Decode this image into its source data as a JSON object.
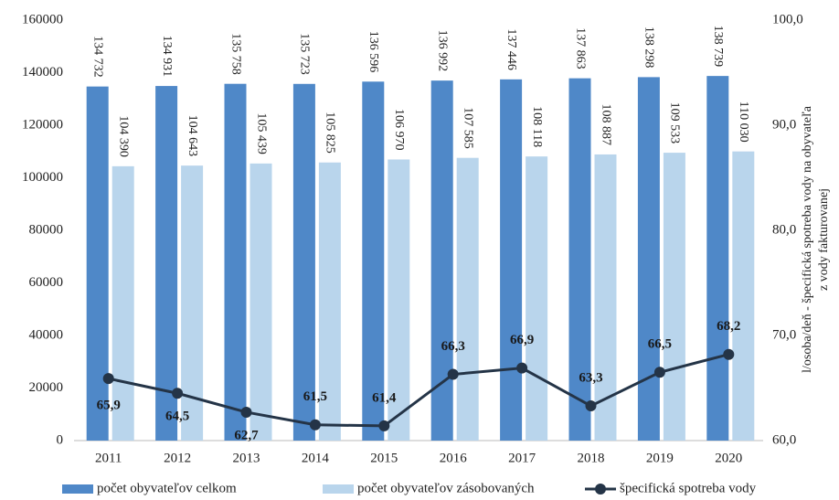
{
  "chart_data": {
    "type": "bar",
    "categories": [
      "2011",
      "2012",
      "2013",
      "2014",
      "2015",
      "2016",
      "2017",
      "2018",
      "2019",
      "2020"
    ],
    "series": [
      {
        "name": "počet obyvateľov celkom",
        "color": "#4f88c8",
        "values": [
          134732,
          134931,
          135758,
          135723,
          136596,
          136992,
          137446,
          137863,
          138298,
          138739
        ],
        "value_labels": [
          "134 732",
          "134 931",
          "135 758",
          "135 723",
          "136 596",
          "136 992",
          "137 446",
          "137 863",
          "138 298",
          "138 739"
        ]
      },
      {
        "name": "počet obyvateľov zásobovaných",
        "color": "#b9d5ec",
        "values": [
          104390,
          104643,
          105439,
          105825,
          106970,
          107585,
          108118,
          108887,
          109533,
          110030
        ],
        "value_labels": [
          "104 390",
          "104 643",
          "105 439",
          "105 825",
          "106 970",
          "107 585",
          "108 118",
          "108 887",
          "109 533",
          "110 030"
        ]
      },
      {
        "name": "špecifická spotreba vody",
        "color": "#243447",
        "type": "line",
        "axis": "y2",
        "values": [
          65.9,
          64.5,
          62.7,
          61.5,
          61.4,
          66.3,
          66.9,
          63.3,
          66.5,
          68.2
        ],
        "value_labels": [
          "65,9",
          "64,5",
          "62,7",
          "61,5",
          "61,4",
          "66,3",
          "66,9",
          "63,3",
          "66,5",
          "68,2"
        ]
      }
    ],
    "ylim": [
      0,
      160000
    ],
    "yticks": [
      0,
      20000,
      40000,
      60000,
      80000,
      100000,
      120000,
      140000,
      160000
    ],
    "y2lim": [
      60,
      100
    ],
    "y2ticks": [
      {
        "value": 60,
        "label": "60,0"
      },
      {
        "value": 70,
        "label": "70,0"
      },
      {
        "value": 80,
        "label": "80,0"
      },
      {
        "value": 90,
        "label": "90,0"
      },
      {
        "value": 100,
        "label": "100,0"
      }
    ],
    "y2label": [
      "l/osoba/deň - špecifická spotreba vody na obyvateľa",
      "z vody fakturovanej"
    ]
  }
}
